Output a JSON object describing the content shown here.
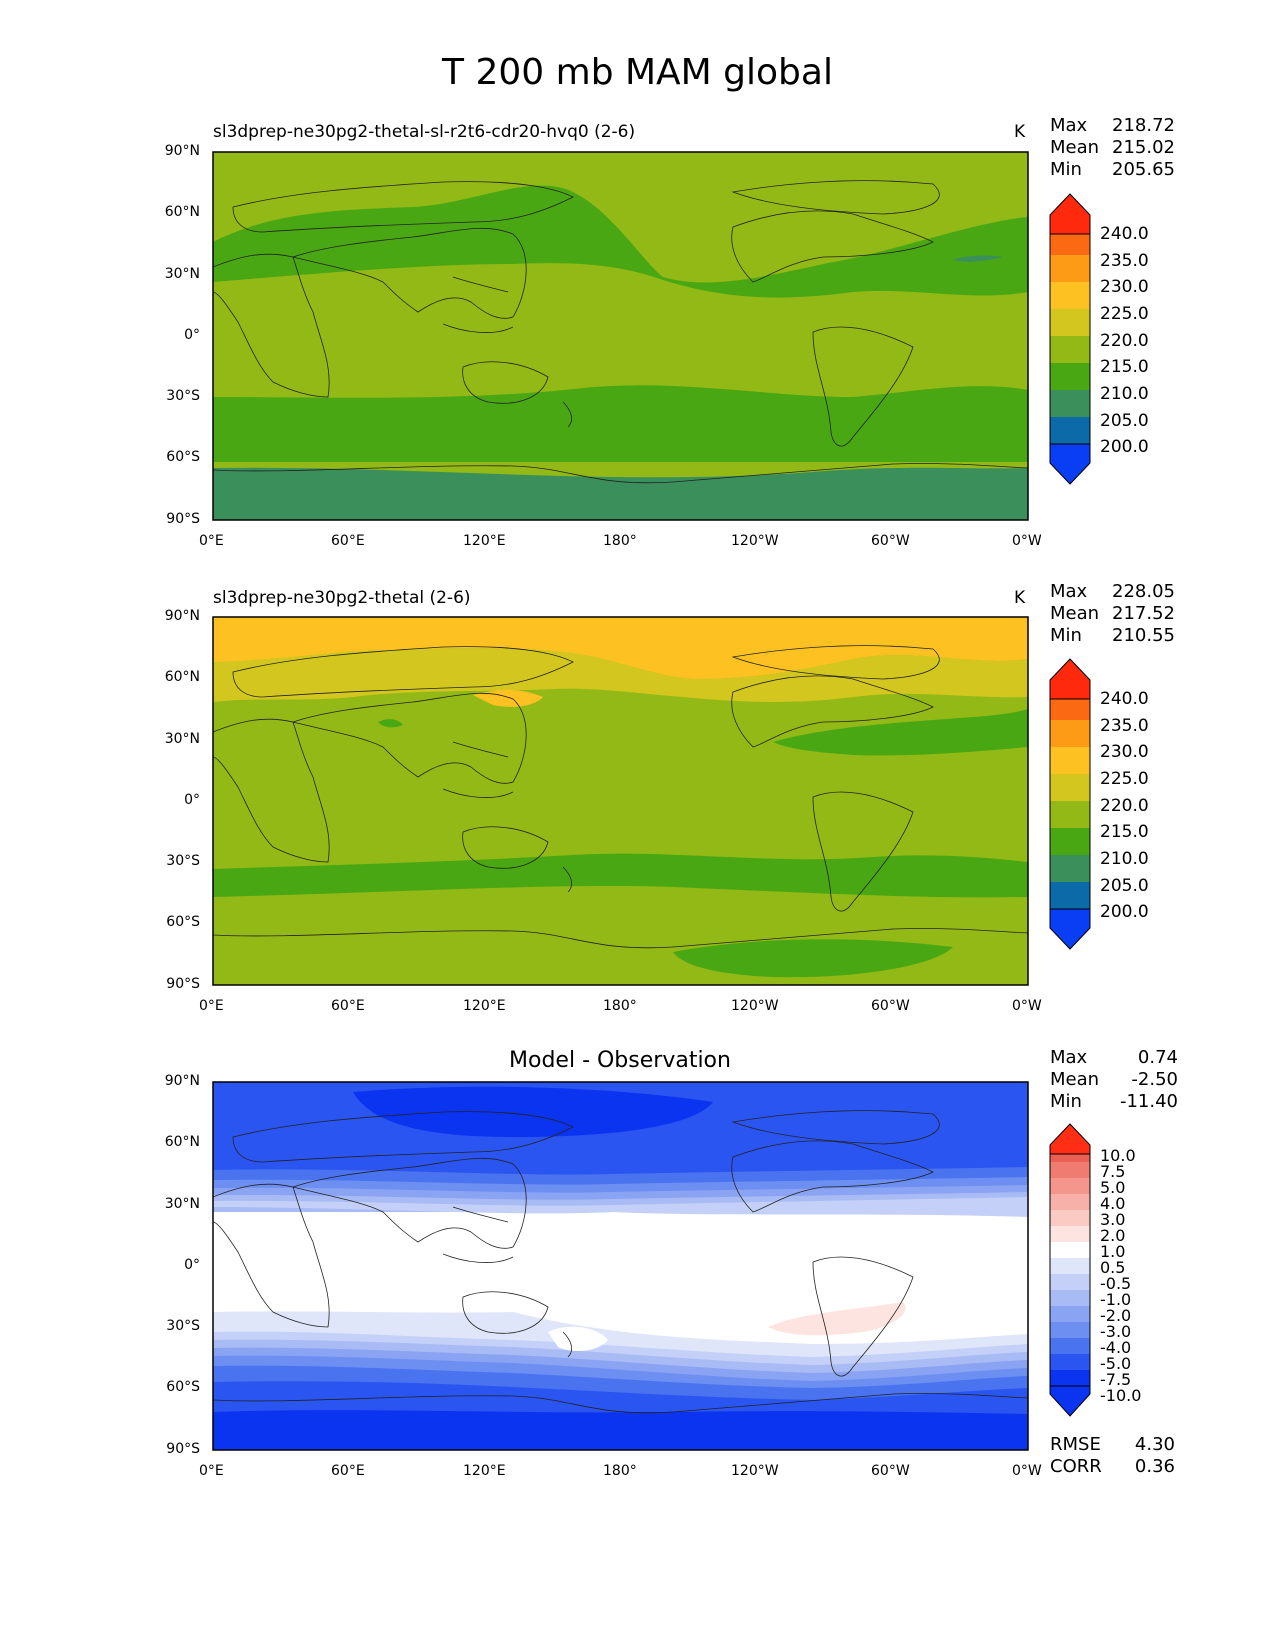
{
  "figure": {
    "title": "T 200 mb MAM global"
  },
  "colors": {
    "abs_levels": [
      "#0a3ef5",
      "#0b6aa7",
      "#3a8f5a",
      "#4aa714",
      "#93b917",
      "#d3c71f",
      "#fdc222",
      "#fd9a16",
      "#fb6a12",
      "#ff2a0d"
    ],
    "diff_levels": [
      "#0b34f0",
      "#2b55f0",
      "#4a73f0",
      "#6d8ff2",
      "#8aa3f2",
      "#a8bbf4",
      "#c4d0f7",
      "#dfe6fa",
      "#ffffff",
      "#fde4e0",
      "#fbcbc3",
      "#f8b1a8",
      "#f4968c",
      "#f07b70",
      "#ec5f55",
      "#e7443a",
      "#ff2e14"
    ]
  },
  "axes": {
    "lat_ticks": [
      "90°N",
      "60°N",
      "30°N",
      "0°",
      "30°S",
      "60°S",
      "90°S"
    ],
    "lon_ticks": [
      "0°E",
      "60°E",
      "120°E",
      "180°",
      "120°W",
      "60°W",
      "0°W"
    ]
  },
  "panels": [
    {
      "title_left": "sl3dprep-ne30pg2-thetal-sl-r2t6-cdr20-hvq0 (2-6)",
      "units": "K",
      "stats": [
        {
          "label": "Max",
          "value": "218.72"
        },
        {
          "label": "Mean",
          "value": "215.02"
        },
        {
          "label": "Min",
          "value": "205.65"
        }
      ],
      "colorbar_labels": [
        "240.0",
        "235.0",
        "230.0",
        "225.0",
        "220.0",
        "215.0",
        "210.0",
        "205.0",
        "200.0"
      ]
    },
    {
      "title_left": "sl3dprep-ne30pg2-thetal (2-6)",
      "units": "K",
      "stats": [
        {
          "label": "Max",
          "value": "228.05"
        },
        {
          "label": "Mean",
          "value": "217.52"
        },
        {
          "label": "Min",
          "value": "210.55"
        }
      ],
      "colorbar_labels": [
        "240.0",
        "235.0",
        "230.0",
        "225.0",
        "220.0",
        "215.0",
        "210.0",
        "205.0",
        "200.0"
      ]
    },
    {
      "title_center": "Model - Observation",
      "stats": [
        {
          "label": "Max",
          "value": "0.74"
        },
        {
          "label": "Mean",
          "value": "-2.50"
        },
        {
          "label": "Min",
          "value": "-11.40"
        }
      ],
      "colorbar_labels": [
        "10.0",
        "7.5",
        "5.0",
        "4.0",
        "3.0",
        "2.0",
        "1.0",
        "0.5",
        "-0.5",
        "-1.0",
        "-2.0",
        "-3.0",
        "-4.0",
        "-5.0",
        "-7.5",
        "-10.0"
      ],
      "extra_stats": [
        {
          "label": "RMSE",
          "value": "4.30"
        },
        {
          "label": "CORR",
          "value": "0.36"
        }
      ]
    }
  ],
  "chart_data": [
    {
      "type": "heatmap",
      "title": "sl3dprep-ne30pg2-thetal-sl-r2t6-cdr20-hvq0 (2-6)",
      "variable": "T 200 mb MAM global",
      "units": "K",
      "xlim": [
        0,
        360
      ],
      "ylim": [
        -90,
        90
      ],
      "contour_levels": [
        200,
        205,
        210,
        215,
        220,
        225,
        230,
        235,
        240
      ],
      "zonal_profile": {
        "lat": [
          90,
          60,
          45,
          30,
          0,
          -25,
          -35,
          -55,
          -65,
          -90
        ],
        "value": [
          217,
          214,
          213,
          216.5,
          217,
          216.5,
          213,
          212.5,
          208,
          208
        ]
      },
      "stats": {
        "max": 218.72,
        "mean": 215.02,
        "min": 205.65
      }
    },
    {
      "type": "heatmap",
      "title": "sl3dprep-ne30pg2-thetal (2-6)",
      "variable": "T 200 mb MAM global",
      "units": "K",
      "xlim": [
        0,
        360
      ],
      "ylim": [
        -90,
        90
      ],
      "contour_levels": [
        200,
        205,
        210,
        215,
        220,
        225,
        230,
        235,
        240
      ],
      "zonal_profile": {
        "lat": [
          90,
          75,
          60,
          45,
          30,
          0,
          -30,
          -40,
          -50,
          -60,
          -90
        ],
        "value": [
          226,
          224,
          221,
          219,
          215,
          217,
          216.5,
          213,
          213,
          216.5,
          216
        ]
      },
      "stats": {
        "max": 228.05,
        "mean": 217.52,
        "min": 210.55
      }
    },
    {
      "type": "heatmap",
      "title": "Model - Observation",
      "units": "K",
      "xlim": [
        0,
        360
      ],
      "ylim": [
        -90,
        90
      ],
      "contour_levels": [
        -10,
        -7.5,
        -5,
        -4,
        -3,
        -2,
        -1,
        -0.5,
        0.5,
        1,
        2,
        3,
        4,
        5,
        7.5,
        10
      ],
      "zonal_profile": {
        "lat": [
          90,
          75,
          60,
          45,
          30,
          20,
          0,
          -25,
          -35,
          -45,
          -60,
          -75,
          -90
        ],
        "value": [
          -8,
          -10,
          -9,
          -5.5,
          -1.5,
          -0.3,
          0,
          -0.3,
          -1.5,
          -4.5,
          -8,
          -10,
          -11
        ]
      },
      "stats": {
        "max": 0.74,
        "mean": -2.5,
        "min": -11.4,
        "rmse": 4.3,
        "corr": 0.36
      }
    }
  ]
}
